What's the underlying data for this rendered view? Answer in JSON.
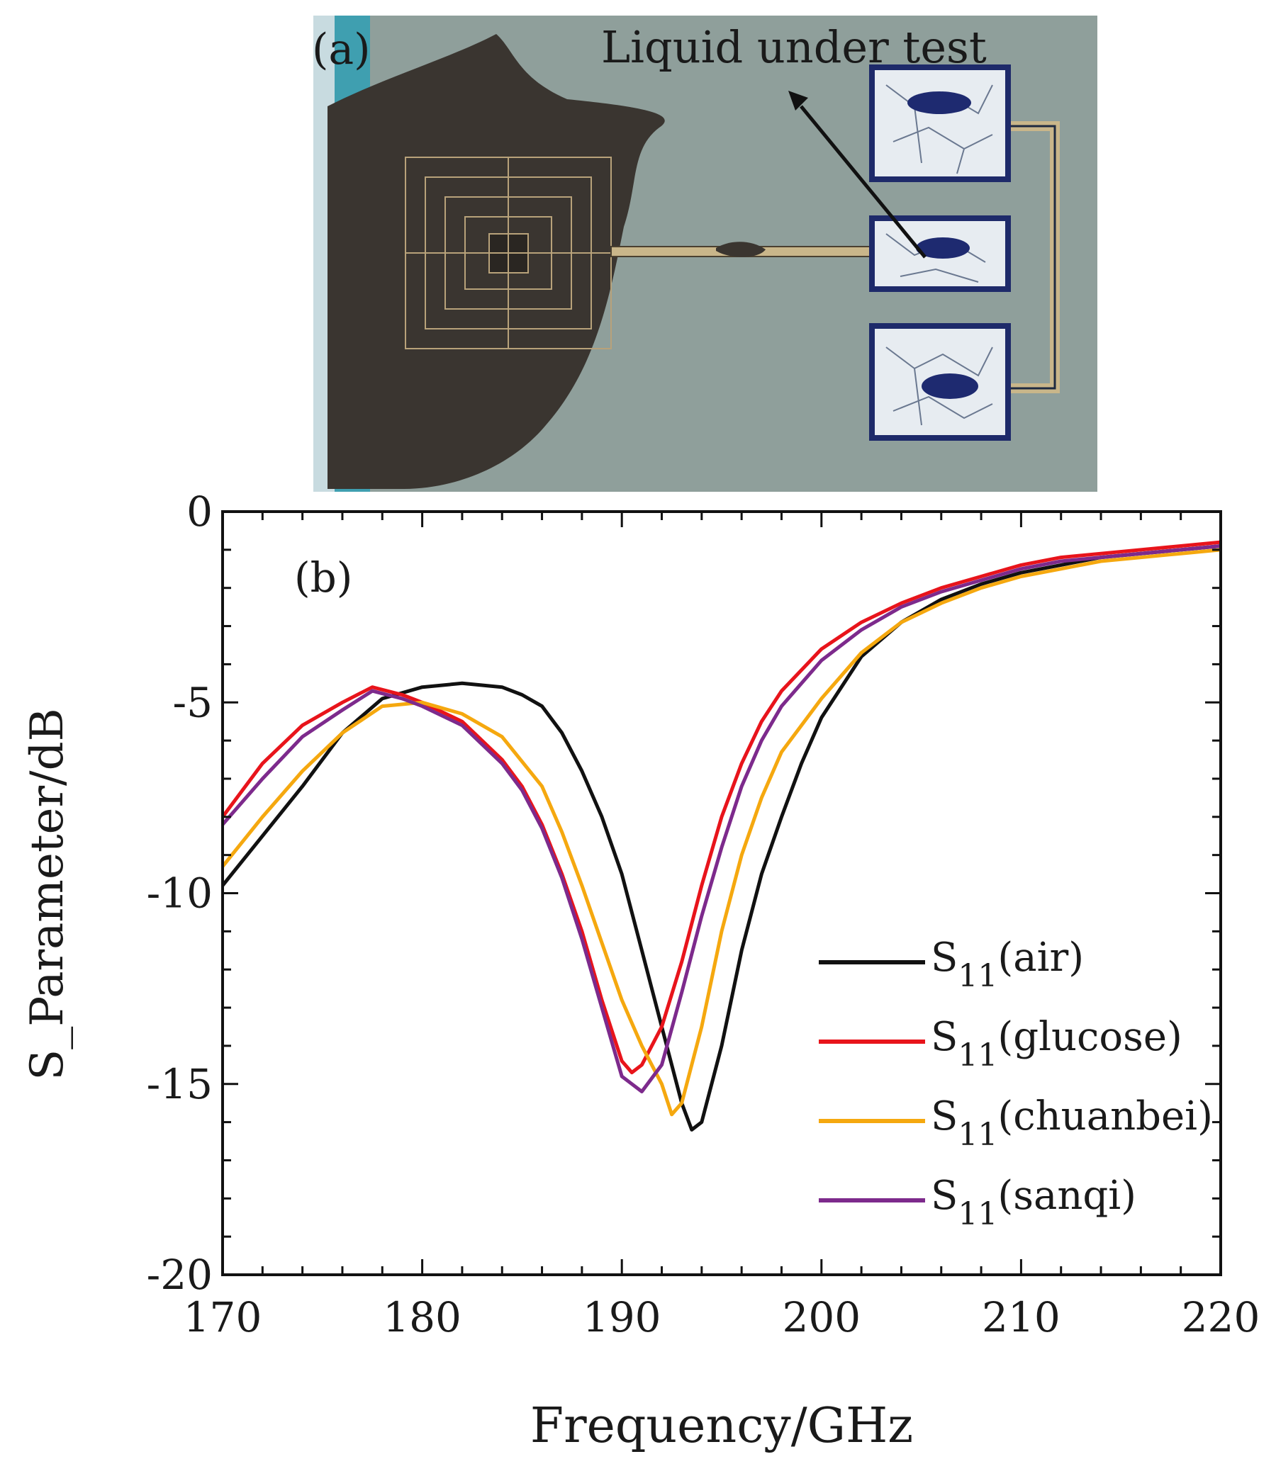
{
  "panel_a": {
    "label": "(a)",
    "annotation": "Liquid under test",
    "colors": {
      "background": "#8f9f9b",
      "edge_strip": "#3f9fb0",
      "dark_region": "#3a3530",
      "pad_fill": "#e7ecf1",
      "pad_border": "#1e2a6a",
      "trace": "#c9b68a"
    }
  },
  "chart_data": {
    "type": "line",
    "panel_label": "(b)",
    "title": "",
    "xlabel": "Frequency/GHz",
    "ylabel": "S_Parameter/dB",
    "xlim": [
      170,
      220
    ],
    "ylim": [
      -20,
      0
    ],
    "xticks": [
      170,
      180,
      190,
      200,
      210,
      220
    ],
    "xtick_labels": [
      "170",
      "180",
      "190",
      "200",
      "210",
      "220"
    ],
    "yticks": [
      0,
      -5,
      -10,
      -15,
      -20
    ],
    "ytick_labels": [
      "0",
      "-5",
      "-10",
      "-15",
      "-20"
    ],
    "grid": false,
    "legend_position": "lower-right",
    "series": [
      {
        "name": "air",
        "label_main": "S",
        "label_sub": "11",
        "label_tail": "(air)",
        "color": "#111111",
        "x": [
          170,
          172,
          174,
          176,
          178,
          180,
          182,
          184,
          185,
          186,
          187,
          188,
          189,
          190,
          191,
          192,
          193,
          193.5,
          194,
          195,
          196,
          197,
          198,
          199,
          200,
          202,
          204,
          206,
          208,
          210,
          212,
          214,
          216,
          218,
          220
        ],
        "y": [
          -9.8,
          -8.5,
          -7.2,
          -5.8,
          -4.9,
          -4.6,
          -4.5,
          -4.6,
          -4.8,
          -5.1,
          -5.8,
          -6.8,
          -8.0,
          -9.5,
          -11.5,
          -13.5,
          -15.5,
          -16.2,
          -16.0,
          -14.0,
          -11.5,
          -9.5,
          -8.0,
          -6.6,
          -5.4,
          -3.8,
          -2.9,
          -2.3,
          -1.9,
          -1.6,
          -1.4,
          -1.2,
          -1.1,
          -1.0,
          -0.9
        ]
      },
      {
        "name": "glucose",
        "label_main": "S",
        "label_sub": "11",
        "label_tail": "(glucose)",
        "color": "#e8141b",
        "x": [
          170,
          172,
          174,
          176,
          177.5,
          179,
          180,
          182,
          184,
          185,
          186,
          187,
          188,
          189,
          190,
          190.5,
          191,
          192,
          193,
          194,
          195,
          196,
          197,
          198,
          200,
          202,
          204,
          206,
          208,
          210,
          212,
          214,
          216,
          218,
          220
        ],
        "y": [
          -8.0,
          -6.6,
          -5.6,
          -5.0,
          -4.6,
          -4.8,
          -5.0,
          -5.5,
          -6.5,
          -7.2,
          -8.2,
          -9.5,
          -11.0,
          -12.8,
          -14.4,
          -14.7,
          -14.5,
          -13.5,
          -11.8,
          -9.8,
          -8.0,
          -6.6,
          -5.5,
          -4.7,
          -3.6,
          -2.9,
          -2.4,
          -2.0,
          -1.7,
          -1.4,
          -1.2,
          -1.1,
          -1.0,
          -0.9,
          -0.8
        ]
      },
      {
        "name": "chuanbei",
        "label_main": "S",
        "label_sub": "11",
        "label_tail": "(chuanbei)",
        "color": "#f5a80f",
        "x": [
          170,
          172,
          174,
          176,
          178,
          180,
          182,
          184,
          186,
          187,
          188,
          189,
          190,
          191,
          192,
          192.5,
          193,
          194,
          195,
          196,
          197,
          198,
          200,
          202,
          204,
          206,
          208,
          210,
          212,
          214,
          216,
          218,
          220
        ],
        "y": [
          -9.3,
          -8.0,
          -6.8,
          -5.8,
          -5.1,
          -5.0,
          -5.3,
          -5.9,
          -7.2,
          -8.4,
          -9.8,
          -11.3,
          -12.8,
          -14.0,
          -15.0,
          -15.8,
          -15.5,
          -13.5,
          -11.0,
          -9.0,
          -7.5,
          -6.3,
          -4.9,
          -3.7,
          -2.9,
          -2.4,
          -2.0,
          -1.7,
          -1.5,
          -1.3,
          -1.2,
          -1.1,
          -1.0
        ]
      },
      {
        "name": "sanqi",
        "label_main": "S",
        "label_sub": "11",
        "label_tail": "(sanqi)",
        "color": "#7d2a8c",
        "x": [
          170,
          172,
          174,
          176,
          177.5,
          179,
          180,
          182,
          184,
          185,
          186,
          187,
          188,
          189,
          190,
          191,
          192,
          193,
          194,
          195,
          196,
          197,
          198,
          200,
          202,
          204,
          206,
          208,
          210,
          212,
          214,
          216,
          218,
          220
        ],
        "y": [
          -8.2,
          -7.0,
          -5.9,
          -5.2,
          -4.7,
          -4.9,
          -5.1,
          -5.6,
          -6.6,
          -7.3,
          -8.3,
          -9.6,
          -11.2,
          -13.0,
          -14.8,
          -15.2,
          -14.5,
          -12.6,
          -10.6,
          -8.8,
          -7.2,
          -6.0,
          -5.1,
          -3.9,
          -3.1,
          -2.5,
          -2.1,
          -1.8,
          -1.5,
          -1.3,
          -1.2,
          -1.1,
          -1.0,
          -0.9
        ]
      }
    ]
  }
}
